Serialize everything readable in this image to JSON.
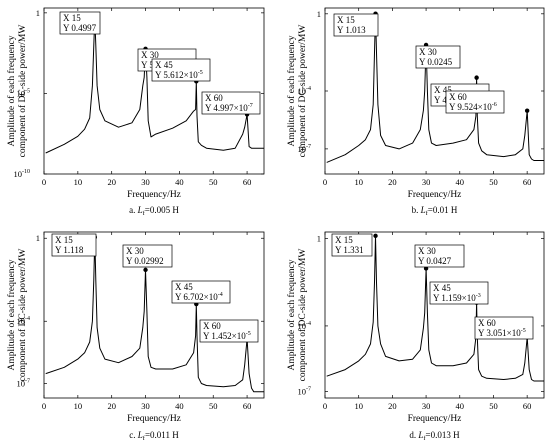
{
  "chart_data": [
    {
      "type": "line",
      "caption_prefix": "a. ",
      "caption_var": "L",
      "caption_sub": "f",
      "caption_value": "=0.005 H",
      "xlabel": "Frequency/Hz",
      "ylabel_lines": [
        "Amplitude of each frequency",
        "component of DC-side power/MW"
      ],
      "xlim": [
        0,
        65
      ],
      "ylim": [
        1e-10,
        2
      ],
      "yscale": "log",
      "grid": false,
      "xticks": [
        0,
        10,
        20,
        30,
        40,
        50,
        60
      ],
      "xtick_labels": [
        "0",
        "10",
        "20",
        "30",
        "40",
        "50",
        "60"
      ],
      "yticks": [
        1,
        1e-05,
        1e-10
      ],
      "ytick_bases": [
        "1",
        "10",
        "10"
      ],
      "ytick_exps": [
        "",
        "-5",
        "-10"
      ],
      "x": [
        0.5,
        6,
        10,
        12,
        13.5,
        14.3,
        14.7,
        15,
        15.3,
        15.7,
        16.5,
        18,
        22,
        26,
        28.3,
        29.2,
        29.6,
        30,
        30.4,
        30.8,
        31.6,
        33,
        38,
        42,
        44.2,
        44.8,
        45,
        45.2,
        45.6,
        46.5,
        48,
        53,
        56.5,
        58.7,
        59.3,
        60,
        60.6,
        61.3,
        62,
        65
      ],
      "y": [
        2e-09,
        7e-09,
        2.2e-08,
        6e-08,
        3e-07,
        3e-05,
        0.01,
        0.4997,
        0.01,
        3e-05,
        1e-06,
        2e-07,
        8e-08,
        1.5e-07,
        1e-06,
        3e-05,
        0.0001,
        0.005876,
        0.0001,
        2e-07,
        2e-08,
        3e-08,
        7e-08,
        2e-07,
        8e-07,
        1e-06,
        5.612e-05,
        4e-07,
        1e-08,
        6e-09,
        4e-09,
        3e-09,
        4e-09,
        3e-08,
        8e-08,
        4.997e-07,
        5e-09,
        4e-09,
        4e-09,
        4e-09
      ],
      "datatips": [
        {
          "x": 15,
          "y": 0.4997,
          "xt": "15",
          "yt": "0.4997"
        },
        {
          "x": 30,
          "y": 0.005876,
          "xt": "30",
          "yt": "5.876×10",
          "ye": "-3"
        },
        {
          "x": 45,
          "y": 5.612e-05,
          "xt": "45",
          "yt": "5.612×10",
          "ye": "-5"
        },
        {
          "x": 60,
          "y": 4.997e-07,
          "xt": "60",
          "yt": "4.997×10",
          "ye": "-7"
        }
      ]
    },
    {
      "type": "line",
      "caption_prefix": "b. ",
      "caption_var": "L",
      "caption_sub": "f",
      "caption_value": "=0.01 H",
      "xlabel": "Frequency/Hz",
      "ylabel_lines": [
        "Amplitude of each frequency",
        "component of DC-side power/MW"
      ],
      "xlim": [
        0,
        65
      ],
      "ylim": [
        5e-09,
        2
      ],
      "yscale": "log",
      "grid": false,
      "xticks": [
        0,
        10,
        20,
        30,
        40,
        50,
        60
      ],
      "xtick_labels": [
        "0",
        "10",
        "20",
        "30",
        "40",
        "50",
        "60"
      ],
      "yticks": [
        1,
        0.0001,
        1e-07
      ],
      "ytick_bases": [
        "1",
        "10",
        "10"
      ],
      "ytick_exps": [
        "",
        "-4",
        "-7"
      ],
      "x": [
        0.5,
        6,
        10,
        12,
        13.5,
        14.3,
        14.7,
        15,
        15.3,
        15.7,
        16.5,
        18,
        22,
        26,
        28.3,
        29.2,
        29.6,
        30,
        30.4,
        30.8,
        31.6,
        33,
        38,
        42,
        44.2,
        44.8,
        45,
        45.2,
        45.6,
        46.5,
        48,
        53,
        56.5,
        58.7,
        59.3,
        60,
        60.6,
        61.3,
        62,
        65
      ],
      "y": [
        2e-08,
        5e-08,
        1.5e-07,
        3e-07,
        1e-06,
        2e-05,
        0.01,
        1.013,
        0.01,
        2e-05,
        5e-07,
        1.5e-07,
        1e-07,
        2e-07,
        1e-06,
        1e-05,
        0.0001,
        0.0245,
        0.0001,
        1e-06,
        2e-07,
        1.5e-07,
        2e-07,
        3e-07,
        1e-06,
        5e-06,
        0.0004926,
        5e-06,
        2e-07,
        8e-08,
        5e-08,
        4e-08,
        5e-08,
        1e-07,
        5e-07,
        9.524e-06,
        5e-08,
        3e-08,
        2.5e-08,
        2.5e-08
      ],
      "datatips": [
        {
          "x": 15,
          "y": 1.013,
          "xt": "15",
          "yt": "1.013"
        },
        {
          "x": 30,
          "y": 0.0245,
          "xt": "30",
          "yt": "0.0245"
        },
        {
          "x": 45,
          "y": 0.0004926,
          "xt": "45",
          "yt": "4.926×10",
          "ye": "-4"
        },
        {
          "x": 60,
          "y": 9.524e-06,
          "xt": "60",
          "yt": "9.524×10",
          "ye": "-6"
        }
      ]
    },
    {
      "type": "line",
      "caption_prefix": "c. ",
      "caption_var": "L",
      "caption_sub": "f",
      "caption_value": "=0.011 H",
      "xlabel": "Frequency/Hz",
      "ylabel_lines": [
        "Amplitude of each frequency",
        "component of DC-side power/MW"
      ],
      "xlim": [
        0,
        65
      ],
      "ylim": [
        2e-08,
        2
      ],
      "yscale": "log",
      "grid": false,
      "xticks": [
        0,
        10,
        20,
        30,
        40,
        50,
        60
      ],
      "xtick_labels": [
        "0",
        "10",
        "20",
        "30",
        "40",
        "50",
        "60"
      ],
      "yticks": [
        1,
        0.0001,
        1e-07
      ],
      "ytick_bases": [
        "1",
        "10",
        "10"
      ],
      "ytick_exps": [
        "",
        "-4",
        "-7"
      ],
      "x": [
        0.5,
        6,
        10,
        12,
        13.5,
        14.3,
        14.7,
        15,
        15.3,
        15.7,
        16.5,
        18,
        22,
        26,
        28.3,
        29.2,
        29.6,
        30,
        30.4,
        30.8,
        31.6,
        33,
        38,
        42,
        44.2,
        44.8,
        45,
        45.2,
        45.6,
        46.5,
        48,
        53,
        56.5,
        58.7,
        59.3,
        60,
        60.6,
        61.3,
        62,
        65
      ],
      "y": [
        3e-07,
        6e-07,
        1.5e-06,
        3e-06,
        1e-05,
        0.0001,
        0.01,
        1.118,
        0.01,
        5e-05,
        5e-06,
        1.5e-06,
        1e-06,
        2e-06,
        5e-06,
        5e-05,
        0.0003,
        0.02992,
        0.0003,
        2e-06,
        6e-07,
        5e-07,
        5e-07,
        8e-07,
        3e-06,
        2e-05,
        0.0006702,
        2e-05,
        2e-07,
        1e-07,
        8e-08,
        7e-08,
        8e-08,
        1.5e-07,
        8e-07,
        1.452e-05,
        3e-07,
        6e-08,
        4e-08,
        4e-08
      ],
      "datatips": [
        {
          "x": 15,
          "y": 1.118,
          "xt": "15",
          "yt": "1.118"
        },
        {
          "x": 30,
          "y": 0.02992,
          "xt": "30",
          "yt": "0.02992"
        },
        {
          "x": 45,
          "y": 0.0006702,
          "xt": "45",
          "yt": "6.702×10",
          "ye": "-4"
        },
        {
          "x": 60,
          "y": 1.452e-05,
          "xt": "60",
          "yt": "1.452×10",
          "ye": "-5"
        }
      ]
    },
    {
      "type": "line",
      "caption_prefix": "d. ",
      "caption_var": "L",
      "caption_sub": "f",
      "caption_value": "=0.013 H",
      "xlabel": "Frequency/Hz",
      "ylabel_lines": [
        "Amplitude of each frequency",
        "component of DC-side power/MW"
      ],
      "xlim": [
        0,
        65
      ],
      "ylim": [
        5e-08,
        2
      ],
      "yscale": "log",
      "grid": false,
      "xticks": [
        0,
        10,
        20,
        30,
        40,
        50,
        60
      ],
      "xtick_labels": [
        "0",
        "10",
        "20",
        "30",
        "40",
        "50",
        "60"
      ],
      "yticks": [
        1,
        0.0001,
        1e-07
      ],
      "ytick_bases": [
        "1",
        "10",
        "10"
      ],
      "ytick_exps": [
        "",
        "-4",
        "-7"
      ],
      "x": [
        0.5,
        6,
        10,
        12,
        13.5,
        14.3,
        14.7,
        15,
        15.3,
        15.7,
        16.5,
        18,
        22,
        26,
        28.3,
        29.2,
        29.6,
        30,
        30.4,
        30.8,
        31.6,
        33,
        38,
        42,
        44.2,
        44.8,
        45,
        45.2,
        45.6,
        46.5,
        48,
        53,
        56.5,
        58.7,
        59.3,
        60,
        60.6,
        61.3,
        62,
        65
      ],
      "y": [
        5e-07,
        1e-06,
        2.5e-06,
        5e-06,
        1.5e-05,
        0.00015,
        0.01,
        1.331,
        0.01,
        0.0001,
        1.5e-05,
        4e-06,
        2.5e-06,
        3e-06,
        8e-06,
        8e-05,
        0.0004,
        0.0427,
        0.0004,
        8e-06,
        2e-06,
        1.5e-06,
        1.5e-06,
        2e-06,
        5e-06,
        3e-05,
        0.001159,
        3e-05,
        1e-06,
        5e-07,
        4e-07,
        3.5e-07,
        4e-07,
        6e-07,
        2e-06,
        3.051e-05,
        1e-06,
        3.5e-07,
        3e-07,
        3e-07
      ],
      "datatips": [
        {
          "x": 15,
          "y": 1.331,
          "xt": "15",
          "yt": "1.331"
        },
        {
          "x": 30,
          "y": 0.0427,
          "xt": "30",
          "yt": "0.0427"
        },
        {
          "x": 45,
          "y": 0.001159,
          "xt": "45",
          "yt": "1.159×10",
          "ye": "-3"
        },
        {
          "x": 60,
          "y": 3.051e-05,
          "xt": "60",
          "yt": "3.051×10",
          "ye": "-5"
        }
      ]
    }
  ],
  "colors": {
    "line": "#000000",
    "marker": "#000000",
    "axes": "#000000",
    "background": "#ffffff"
  }
}
